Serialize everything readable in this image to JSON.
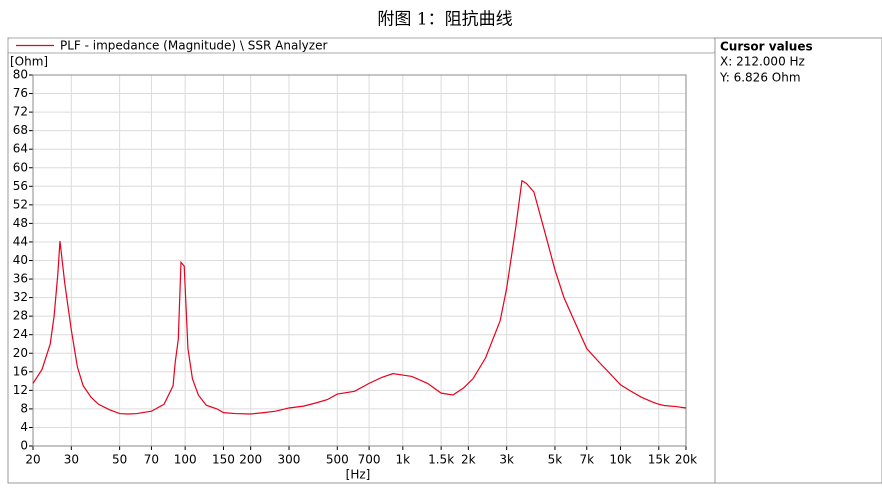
{
  "chart_data": {
    "type": "line",
    "title": "附图 1：阻抗曲线",
    "x_label": "[Hz]",
    "y_label": "[Ohm]",
    "xscale": "log",
    "grid": true,
    "xlim": [
      20,
      20000
    ],
    "ylim": [
      0,
      80
    ],
    "xticks": [
      20,
      30,
      50,
      70,
      100,
      150,
      200,
      300,
      500,
      700,
      {
        "value": 1000,
        "label": "1k"
      },
      {
        "value": 1500,
        "label": "1.5k"
      },
      {
        "value": 2000,
        "label": "2k"
      },
      {
        "value": 3000,
        "label": "3k"
      },
      {
        "value": 5000,
        "label": "5k"
      },
      {
        "value": 7000,
        "label": "7k"
      },
      {
        "value": 10000,
        "label": "10k"
      },
      {
        "value": 15000,
        "label": "15k"
      },
      {
        "value": 20000,
        "label": "20k"
      }
    ],
    "yticks": [
      0,
      4,
      8,
      12,
      16,
      20,
      24,
      28,
      32,
      36,
      40,
      44,
      48,
      52,
      56,
      60,
      64,
      68,
      72,
      76,
      80
    ],
    "x": [
      20,
      22,
      24,
      25,
      26,
      26.6,
      28,
      30,
      32,
      34,
      37,
      40,
      45,
      50,
      55,
      60,
      70,
      80,
      88,
      90,
      93,
      95.7,
      99,
      103,
      108,
      115,
      125,
      140,
      150,
      170,
      200,
      230,
      260,
      300,
      350,
      400,
      450,
      500,
      600,
      700,
      800,
      900,
      1000,
      1100,
      1300,
      1500,
      1700,
      1900,
      2100,
      2400,
      2800,
      3000,
      3300,
      3525,
      3700,
      4000,
      4500,
      5000,
      5500,
      6000,
      7000,
      8000,
      9000,
      10000,
      11000,
      12500,
      14000,
      15000,
      16000,
      18000,
      20000
    ],
    "series": [
      {
        "name": "PLF - impedance (Magnitude) \\ SSR Analyzer",
        "color": "#e8001c",
        "values": [
          13.5,
          16.5,
          22,
          28,
          37,
          44.2,
          35,
          25,
          17,
          13,
          10.5,
          9,
          7.8,
          7,
          6.9,
          7,
          7.5,
          9,
          13,
          18,
          23,
          39.6,
          38.8,
          21,
          14.5,
          11,
          8.8,
          8,
          7.2,
          7,
          6.9,
          7.2,
          7.5,
          8.2,
          8.6,
          9.3,
          10,
          11.2,
          11.8,
          13.5,
          14.8,
          15.6,
          15.3,
          15,
          13.5,
          11.4,
          11,
          12.5,
          14.5,
          19,
          27,
          34,
          47,
          57.2,
          56.6,
          54.8,
          46,
          38,
          32,
          28,
          21,
          18,
          15.5,
          13.2,
          12,
          10.5,
          9.5,
          9,
          8.7,
          8.5,
          8.2
        ]
      }
    ]
  },
  "cursor_panel": {
    "title": "Cursor values",
    "x": "X: 212.000 Hz",
    "y": "Y: 6.826 Ohm"
  }
}
